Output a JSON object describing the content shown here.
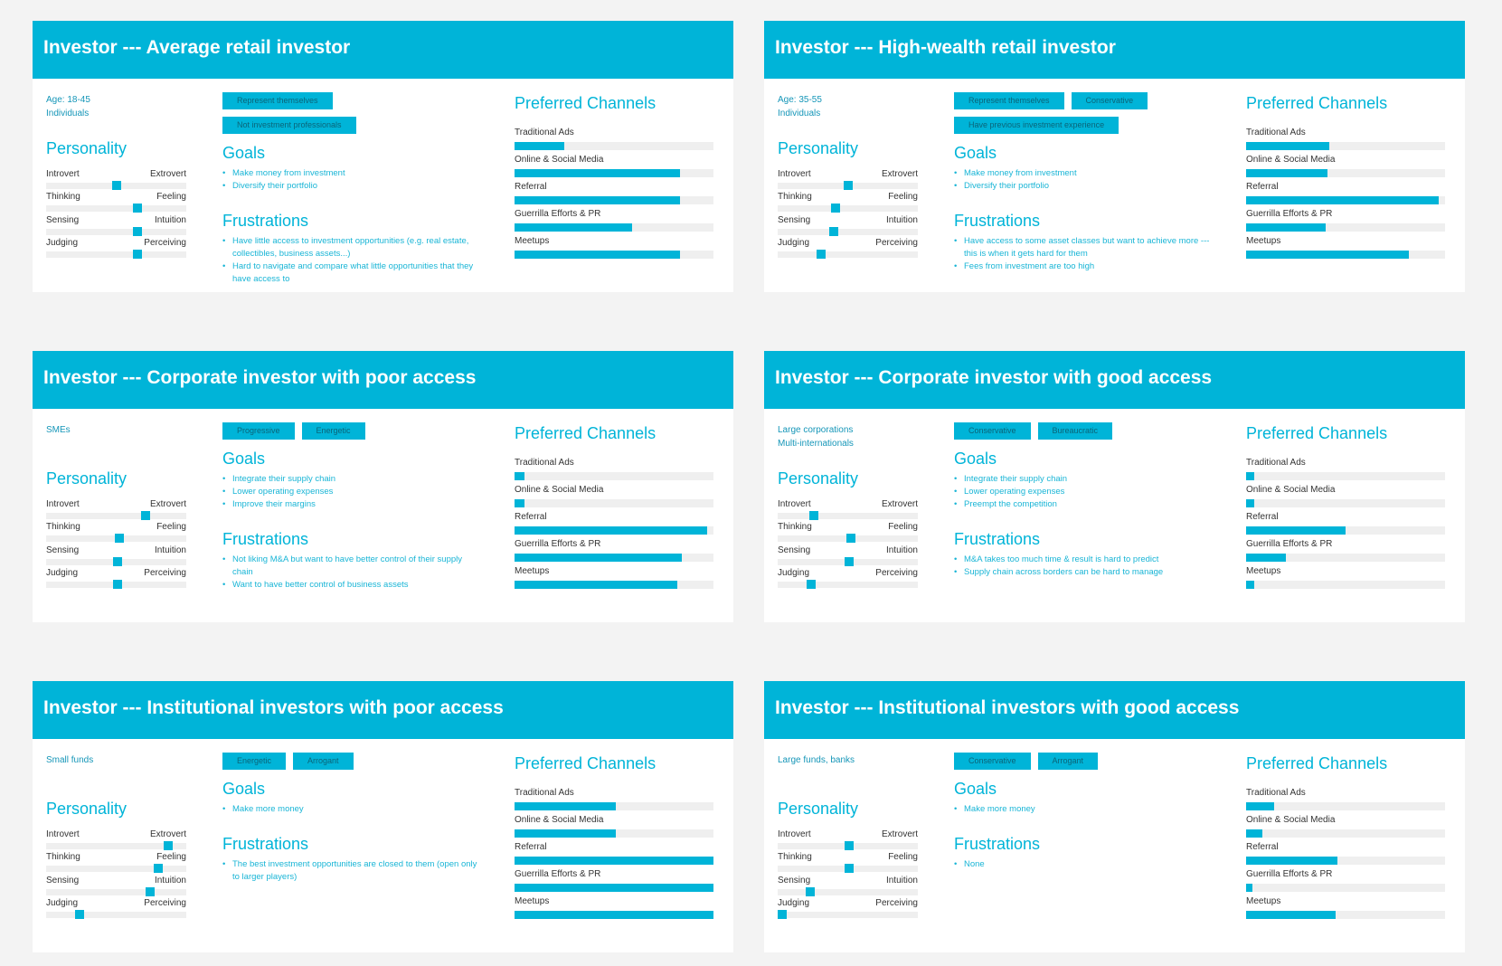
{
  "sections": {
    "personality": "Personality",
    "goals": "Goals",
    "frustrations": "Frustrations",
    "channels": "Preferred Channels"
  },
  "personality_scales": [
    {
      "left": "Introvert",
      "right": "Extrovert"
    },
    {
      "left": "Thinking",
      "right": "Feeling"
    },
    {
      "left": "Sensing",
      "right": "Intuition"
    },
    {
      "left": "Judging",
      "right": "Perceiving"
    }
  ],
  "channels": [
    "Traditional Ads",
    "Online & Social Media",
    "Referral",
    "Guerrilla Efforts & PR",
    "Meetups"
  ],
  "personas": [
    {
      "title": "Investor --- Average retail investor",
      "demographics": [
        "Age: 18-45",
        "Individuals"
      ],
      "tags": [
        [
          "Represent themselves"
        ],
        [
          "Not investment professionals"
        ]
      ],
      "personality": [
        50,
        65,
        65,
        65
      ],
      "goals": [
        "Make money from investment",
        "Diversify their portfolio"
      ],
      "frustrations": [
        "Have little access to investment opportunities (e.g. real estate, collectibles, business assets...)",
        "Hard to navigate and compare what little opportunities that they have access to"
      ],
      "channel_values": [
        25,
        83,
        83,
        59,
        83
      ]
    },
    {
      "title": "Investor --- High-wealth retail investor",
      "demographics": [
        "Age: 35-55",
        "Individuals"
      ],
      "tags": [
        [
          "Represent themselves",
          "Conservative"
        ],
        [
          "Have previous investment experience"
        ]
      ],
      "personality": [
        50,
        41,
        40,
        31
      ],
      "goals": [
        "Make money from investment",
        "Diversify their portfolio"
      ],
      "frustrations": [
        "Have access to some asset classes but want to achieve more --- this is when it gets hard for them",
        "Fees from investment are too high"
      ],
      "channel_values": [
        42,
        41,
        97,
        40,
        82
      ]
    },
    {
      "title": "Investor --- Corporate investor with poor access",
      "demographics": [
        "SMEs"
      ],
      "tags": [
        [
          "Progressive",
          "Energetic"
        ]
      ],
      "personality": [
        71,
        52,
        51,
        51
      ],
      "goals": [
        "Integrate their supply chain",
        "Lower operating expenses",
        "Improve their margins"
      ],
      "frustrations": [
        "Not liking M&A but want to have better control of their supply chain",
        "Want to have better control of business assets"
      ],
      "channel_values": [
        5,
        5,
        97,
        84,
        82
      ]
    },
    {
      "title": "Investor --- Corporate investor with good access",
      "demographics": [
        "Large corporations",
        "Multi-internationals"
      ],
      "tags": [
        [
          "Conservative",
          "Bureaucratic"
        ]
      ],
      "personality": [
        26,
        52,
        51,
        24
      ],
      "goals": [
        "Integrate their supply chain",
        "Lower operating expenses",
        "Preempt the competition"
      ],
      "frustrations": [
        "M&A takes too much time & result is hard to predict",
        "Supply chain across borders can be hard to manage"
      ],
      "channel_values": [
        4,
        4,
        50,
        20,
        4
      ]
    },
    {
      "title": "Investor --- Institutional investors with poor access",
      "demographics": [
        "Small funds"
      ],
      "tags": [
        [
          "Energetic",
          "Arrogant"
        ]
      ],
      "personality": [
        87,
        80,
        74,
        24
      ],
      "goals": [
        "Make more money"
      ],
      "frustrations": [
        "The best investment opportunities are closed to them (open only to larger players)"
      ],
      "channel_values": [
        51,
        51,
        100,
        100,
        100
      ]
    },
    {
      "title": "Investor --- Institutional investors with good access",
      "demographics": [
        "Large funds, banks"
      ],
      "tags": [
        [
          "Conservative",
          "Arrogant"
        ]
      ],
      "personality": [
        51,
        51,
        23,
        3
      ],
      "goals": [
        "Make more money"
      ],
      "frustrations": [
        "None"
      ],
      "channel_values": [
        14,
        8,
        46,
        3,
        45
      ]
    }
  ]
}
